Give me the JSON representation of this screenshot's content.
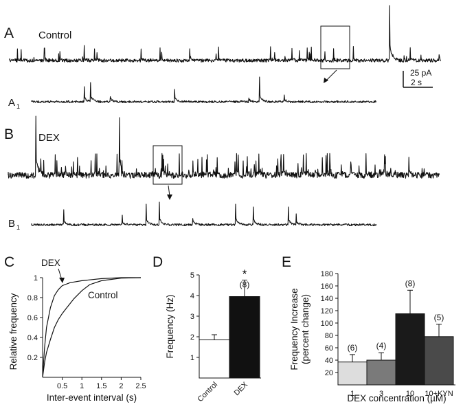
{
  "panels": {
    "a": {
      "letter": "A",
      "label": "Control",
      "sub_letter": "A",
      "sub_index": "1"
    },
    "b": {
      "letter": "B",
      "label": "DEX",
      "sub_letter": "B",
      "sub_index": "1"
    },
    "c": {
      "letter": "C"
    },
    "d": {
      "letter": "D"
    },
    "e": {
      "letter": "E"
    }
  },
  "scale_bar": {
    "amplitude": "25 pA",
    "time": "2 s"
  },
  "chart_data": [
    {
      "panel": "C",
      "type": "line",
      "xlabel": "Inter-event interval (s)",
      "ylabel": "Relative frequency",
      "xlim": [
        0,
        2.5
      ],
      "ylim": [
        0,
        1
      ],
      "xticks": [
        "0.5",
        "1",
        "1.5",
        "2",
        "2.5"
      ],
      "yticks": [
        "0.2",
        "0.4",
        "0.6",
        "0.8",
        "1"
      ],
      "series": [
        {
          "name": "DEX",
          "x": [
            0,
            0.05,
            0.1,
            0.2,
            0.3,
            0.4,
            0.5,
            0.7,
            1.0,
            1.5,
            2.0,
            2.5
          ],
          "y": [
            0,
            0.3,
            0.5,
            0.7,
            0.82,
            0.88,
            0.92,
            0.95,
            0.97,
            0.99,
            1.0,
            1.0
          ]
        },
        {
          "name": "Control",
          "x": [
            0,
            0.05,
            0.1,
            0.2,
            0.3,
            0.4,
            0.5,
            0.6,
            0.8,
            1.0,
            1.2,
            1.5,
            2.0,
            2.5
          ],
          "y": [
            0,
            0.15,
            0.25,
            0.38,
            0.5,
            0.58,
            0.64,
            0.69,
            0.79,
            0.87,
            0.93,
            0.97,
            0.995,
            1.0
          ]
        }
      ],
      "annotations": [
        "DEX",
        "Control"
      ]
    },
    {
      "panel": "D",
      "type": "bar",
      "ylabel": "Frequency (Hz)",
      "ylim": [
        0,
        5
      ],
      "yticks": [
        "1",
        "2",
        "3",
        "4",
        "5"
      ],
      "categories": [
        "Control",
        "DEX"
      ],
      "values": [
        1.85,
        3.95
      ],
      "errors": [
        0.25,
        0.8
      ],
      "colors": [
        "#ffffff",
        "#111111"
      ],
      "annotations": {
        "star": "*",
        "n": "(8)"
      }
    },
    {
      "panel": "E",
      "type": "bar",
      "xlabel": "DEX concentration (µM)",
      "ylabel": "Frequency Increase\n(percent change)",
      "ylabel_line1": "Frequency Increase",
      "ylabel_line2": "(percent change)",
      "ylim": [
        0,
        180
      ],
      "yticks": [
        "20",
        "40",
        "60",
        "80",
        "100",
        "120",
        "140",
        "160",
        "180"
      ],
      "categories": [
        "1",
        "3",
        "10",
        "10+KYN"
      ],
      "values": [
        37,
        40,
        115,
        78
      ],
      "errors": [
        12,
        12,
        38,
        20
      ],
      "n_labels": [
        "(6)",
        "(4)",
        "(8)",
        "(5)"
      ],
      "colors": [
        "#dddddd",
        "#7a7a7a",
        "#1a1a1a",
        "#4a4a4a"
      ]
    }
  ]
}
